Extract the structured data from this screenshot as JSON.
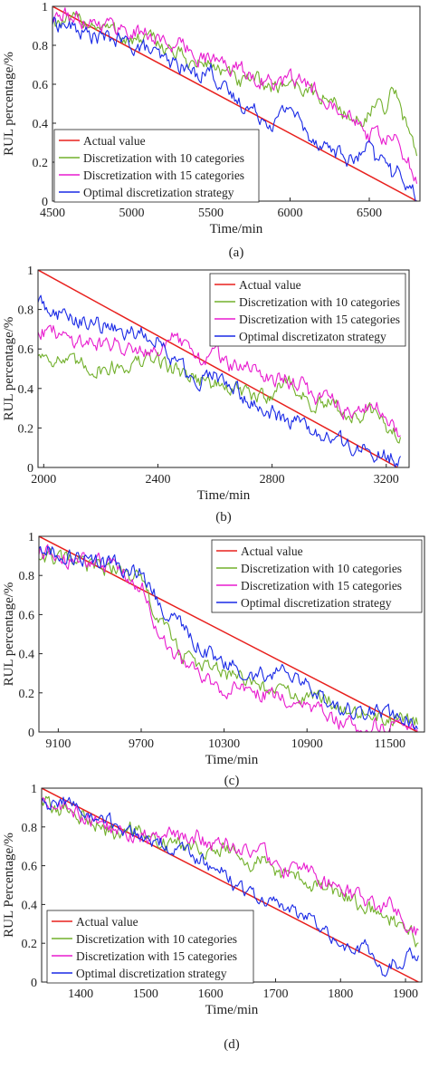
{
  "chart_data": [
    {
      "id": "a",
      "type": "line",
      "caption": "(a)",
      "xlabel": "Time/min",
      "ylabel": "RUL percentage/%",
      "xlim": [
        4500,
        6820
      ],
      "ylim": [
        0,
        1
      ],
      "xticks": [
        4500,
        5000,
        5500,
        6000,
        6500
      ],
      "yticks": [
        0,
        0.2,
        0.4,
        0.6,
        0.8,
        1
      ],
      "xtick_labels": [
        "4500",
        "5000",
        "5500",
        "6000",
        "6500"
      ],
      "ytick_labels": [
        "0",
        "0.2",
        "0.4",
        "0.6",
        "0.8",
        "1"
      ],
      "legend_position": "bottom-left",
      "series": [
        {
          "name": "Actual value",
          "color": "#e8201d",
          "x": [
            4500,
            6800
          ],
          "y": [
            1.0,
            0.0
          ]
        },
        {
          "name": "Discretization with 10 categories",
          "color": "#72b02c",
          "x": [
            4500,
            4600,
            4700,
            4800,
            4900,
            5000,
            5100,
            5200,
            5300,
            5400,
            5500,
            5600,
            5700,
            5800,
            5900,
            6000,
            6100,
            6200,
            6300,
            6400,
            6500,
            6550,
            6600,
            6650,
            6700,
            6750,
            6800
          ],
          "y": [
            0.93,
            0.91,
            0.93,
            0.9,
            0.87,
            0.82,
            0.83,
            0.8,
            0.75,
            0.7,
            0.71,
            0.65,
            0.6,
            0.62,
            0.58,
            0.62,
            0.57,
            0.53,
            0.5,
            0.4,
            0.45,
            0.5,
            0.42,
            0.6,
            0.45,
            0.38,
            0.25
          ]
        },
        {
          "name": "Discretization with 15 categories",
          "color": "#e81ccf",
          "x": [
            4500,
            4600,
            4700,
            4800,
            4900,
            5000,
            5100,
            5200,
            5300,
            5400,
            5500,
            5600,
            5700,
            5800,
            5900,
            6000,
            6100,
            6200,
            6300,
            6400,
            6500,
            6550,
            6600,
            6650,
            6700,
            6750,
            6800
          ],
          "y": [
            0.94,
            0.95,
            0.93,
            0.92,
            0.9,
            0.87,
            0.86,
            0.82,
            0.8,
            0.76,
            0.73,
            0.7,
            0.67,
            0.63,
            0.6,
            0.62,
            0.6,
            0.55,
            0.5,
            0.45,
            0.33,
            0.35,
            0.3,
            0.33,
            0.25,
            0.2,
            0.1
          ]
        },
        {
          "name": "Optimal discretization strategy",
          "color": "#1a2ae6",
          "x": [
            4500,
            4600,
            4700,
            4800,
            4900,
            5000,
            5100,
            5200,
            5300,
            5400,
            5500,
            5600,
            5700,
            5800,
            5900,
            6000,
            6100,
            6200,
            6300,
            6400,
            6500,
            6550,
            6600,
            6650,
            6700,
            6750,
            6800
          ],
          "y": [
            0.92,
            0.9,
            0.86,
            0.84,
            0.83,
            0.8,
            0.78,
            0.72,
            0.7,
            0.65,
            0.68,
            0.55,
            0.5,
            0.45,
            0.4,
            0.5,
            0.35,
            0.3,
            0.25,
            0.2,
            0.28,
            0.18,
            0.25,
            0.12,
            0.15,
            0.08,
            0.02
          ]
        }
      ]
    },
    {
      "id": "b",
      "type": "line",
      "caption": "(b)",
      "xlabel": "Time/min",
      "ylabel": "RUL percentage/%",
      "xlim": [
        1980,
        3280
      ],
      "ylim": [
        0,
        1
      ],
      "xticks": [
        2000,
        2400,
        2800,
        3200
      ],
      "yticks": [
        0,
        0.2,
        0.4,
        0.6,
        0.8,
        1
      ],
      "xtick_labels": [
        "2000",
        "2400",
        "2800",
        "3200"
      ],
      "ytick_labels": [
        "0",
        "0.2",
        "0.4",
        "0.6",
        "0.8",
        "1"
      ],
      "legend_position": "top-right",
      "series": [
        {
          "name": "Actual value",
          "color": "#e8201d",
          "x": [
            1980,
            3240
          ],
          "y": [
            1.0,
            0.0
          ]
        },
        {
          "name": "Discretization with 10 categories",
          "color": "#72b02c",
          "x": [
            1980,
            2050,
            2100,
            2200,
            2300,
            2400,
            2450,
            2500,
            2550,
            2600,
            2650,
            2700,
            2750,
            2800,
            2850,
            2900,
            2950,
            3000,
            3050,
            3100,
            3150,
            3200,
            3250
          ],
          "y": [
            0.58,
            0.55,
            0.52,
            0.5,
            0.52,
            0.55,
            0.5,
            0.48,
            0.45,
            0.42,
            0.4,
            0.38,
            0.35,
            0.38,
            0.44,
            0.38,
            0.3,
            0.32,
            0.28,
            0.24,
            0.28,
            0.2,
            0.16
          ]
        },
        {
          "name": "Discretization with 15 categories",
          "color": "#e81ccf",
          "x": [
            1980,
            2050,
            2100,
            2200,
            2300,
            2400,
            2450,
            2500,
            2550,
            2600,
            2650,
            2700,
            2750,
            2800,
            2850,
            2900,
            2950,
            3000,
            3050,
            3100,
            3150,
            3200,
            3250
          ],
          "y": [
            0.7,
            0.68,
            0.65,
            0.63,
            0.62,
            0.6,
            0.65,
            0.6,
            0.55,
            0.58,
            0.52,
            0.5,
            0.48,
            0.46,
            0.45,
            0.42,
            0.35,
            0.38,
            0.3,
            0.28,
            0.3,
            0.28,
            0.15
          ]
        },
        {
          "name": "Optimal discretizaton strategy",
          "color": "#1a2ae6",
          "x": [
            1980,
            2050,
            2100,
            2200,
            2300,
            2400,
            2450,
            2500,
            2550,
            2600,
            2650,
            2700,
            2750,
            2800,
            2850,
            2900,
            2950,
            3000,
            3050,
            3100,
            3150,
            3200,
            3250
          ],
          "y": [
            0.85,
            0.78,
            0.75,
            0.72,
            0.68,
            0.66,
            0.55,
            0.48,
            0.45,
            0.48,
            0.4,
            0.36,
            0.32,
            0.28,
            0.24,
            0.22,
            0.18,
            0.15,
            0.12,
            0.1,
            0.08,
            0.06,
            0.04
          ]
        }
      ]
    },
    {
      "id": "c",
      "type": "line",
      "caption": "(c)",
      "xlabel": "Time/min",
      "ylabel": "RUL percentage/%",
      "xlim": [
        8960,
        11750
      ],
      "ylim": [
        0,
        1
      ],
      "xticks": [
        9100,
        9700,
        10300,
        10900,
        11500
      ],
      "yticks": [
        0,
        0.2,
        0.4,
        0.6,
        0.8,
        1
      ],
      "xtick_labels": [
        "9100",
        "9700",
        "10300",
        "10900",
        "11500"
      ],
      "ytick_labels": [
        "0",
        "0.2",
        "0.4",
        "0.6",
        "0.8",
        "1"
      ],
      "legend_position": "top-right",
      "series": [
        {
          "name": "Actual value",
          "color": "#e8201d",
          "x": [
            8960,
            11700
          ],
          "y": [
            1.0,
            0.0
          ]
        },
        {
          "name": "Discretization with 10 categories",
          "color": "#72b02c",
          "x": [
            8960,
            9100,
            9300,
            9500,
            9700,
            9800,
            9900,
            10000,
            10100,
            10300,
            10500,
            10700,
            10900,
            11100,
            11300,
            11500,
            11700
          ],
          "y": [
            0.9,
            0.88,
            0.85,
            0.84,
            0.78,
            0.6,
            0.5,
            0.4,
            0.35,
            0.3,
            0.25,
            0.2,
            0.18,
            0.15,
            0.1,
            0.06,
            0.05
          ]
        },
        {
          "name": "Discretization with 15 categories",
          "color": "#e81ccf",
          "x": [
            8960,
            9100,
            9300,
            9500,
            9700,
            9800,
            9900,
            10000,
            10100,
            10300,
            10500,
            10700,
            10900,
            11100,
            11300,
            11500,
            11700
          ],
          "y": [
            0.92,
            0.9,
            0.86,
            0.85,
            0.76,
            0.55,
            0.45,
            0.35,
            0.3,
            0.22,
            0.2,
            0.18,
            0.15,
            0.05,
            0.03,
            0.04,
            0.05
          ]
        },
        {
          "name": "Optimal discretization strategy",
          "color": "#1a2ae6",
          "x": [
            8960,
            9100,
            9300,
            9500,
            9700,
            9800,
            9900,
            10000,
            10100,
            10300,
            10500,
            10700,
            10900,
            11100,
            11300,
            11500,
            11700
          ],
          "y": [
            0.95,
            0.92,
            0.88,
            0.85,
            0.82,
            0.7,
            0.6,
            0.55,
            0.45,
            0.35,
            0.28,
            0.3,
            0.25,
            0.12,
            0.1,
            0.08,
            0.05
          ]
        }
      ]
    },
    {
      "id": "d",
      "type": "line",
      "caption": "(d)",
      "xlabel": "Time/min",
      "ylabel": "RUL Percentage/%",
      "xlim": [
        1340,
        1925
      ],
      "ylim": [
        0,
        1
      ],
      "xticks": [
        1400,
        1500,
        1600,
        1700,
        1800,
        1900
      ],
      "yticks": [
        0,
        0.2,
        0.4,
        0.6,
        0.8,
        1
      ],
      "xtick_labels": [
        "1400",
        "1500",
        "1600",
        "1700",
        "1800",
        "1900"
      ],
      "ytick_labels": [
        "0",
        "0.2",
        "0.4",
        "0.6",
        "0.8",
        "1"
      ],
      "legend_position": "bottom-left",
      "series": [
        {
          "name": "Actual value",
          "color": "#e8201d",
          "x": [
            1340,
            1920
          ],
          "y": [
            1.0,
            0.0
          ]
        },
        {
          "name": "Discretization with 10 categories",
          "color": "#72b02c",
          "x": [
            1340,
            1360,
            1380,
            1400,
            1420,
            1440,
            1460,
            1480,
            1500,
            1520,
            1540,
            1560,
            1580,
            1600,
            1620,
            1640,
            1660,
            1680,
            1700,
            1720,
            1740,
            1760,
            1780,
            1800,
            1820,
            1840,
            1860,
            1880,
            1900,
            1920
          ],
          "y": [
            0.95,
            0.88,
            0.9,
            0.86,
            0.82,
            0.78,
            0.76,
            0.8,
            0.74,
            0.75,
            0.72,
            0.7,
            0.72,
            0.68,
            0.7,
            0.65,
            0.6,
            0.62,
            0.58,
            0.55,
            0.52,
            0.5,
            0.48,
            0.45,
            0.42,
            0.38,
            0.35,
            0.32,
            0.28,
            0.2
          ]
        },
        {
          "name": "Discretization with 15 categories",
          "color": "#e81ccf",
          "x": [
            1340,
            1360,
            1380,
            1400,
            1420,
            1440,
            1460,
            1480,
            1500,
            1520,
            1540,
            1560,
            1580,
            1600,
            1620,
            1640,
            1660,
            1680,
            1700,
            1720,
            1740,
            1760,
            1780,
            1800,
            1820,
            1840,
            1860,
            1880,
            1900,
            1920
          ],
          "y": [
            0.94,
            0.92,
            0.9,
            0.86,
            0.84,
            0.8,
            0.78,
            0.76,
            0.75,
            0.74,
            0.76,
            0.72,
            0.75,
            0.7,
            0.72,
            0.68,
            0.7,
            0.66,
            0.6,
            0.58,
            0.62,
            0.56,
            0.5,
            0.48,
            0.45,
            0.42,
            0.38,
            0.4,
            0.3,
            0.25
          ]
        },
        {
          "name": "Optimal discretization strategy",
          "color": "#1a2ae6",
          "x": [
            1340,
            1360,
            1380,
            1400,
            1420,
            1440,
            1460,
            1480,
            1500,
            1520,
            1540,
            1560,
            1580,
            1600,
            1620,
            1640,
            1660,
            1680,
            1700,
            1720,
            1740,
            1760,
            1780,
            1800,
            1820,
            1840,
            1860,
            1880,
            1900,
            1920
          ],
          "y": [
            0.96,
            0.9,
            0.95,
            0.88,
            0.84,
            0.82,
            0.8,
            0.78,
            0.74,
            0.72,
            0.7,
            0.66,
            0.64,
            0.6,
            0.55,
            0.5,
            0.45,
            0.42,
            0.4,
            0.38,
            0.35,
            0.3,
            0.28,
            0.2,
            0.15,
            0.18,
            0.05,
            0.1,
            0.12,
            0.15
          ]
        }
      ]
    }
  ]
}
